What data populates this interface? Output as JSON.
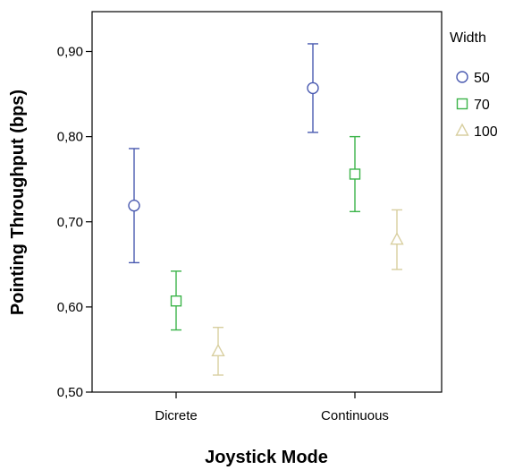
{
  "chart_data": {
    "type": "scatter",
    "title": "",
    "xlabel": "Joystick Mode",
    "ylabel": "Pointing Throughput (bps)",
    "categories": [
      "Dicrete",
      "Continuous"
    ],
    "ylim": [
      0.5,
      0.9
    ],
    "yticks": [
      "0,50",
      "0,60",
      "0,70",
      "0,80",
      "0,90"
    ],
    "yticks_values": [
      0.5,
      0.6,
      0.7,
      0.8,
      0.9
    ],
    "grid": false,
    "legend_title": "Width",
    "legend_position": "right",
    "error_bars": true,
    "series": [
      {
        "name": "50",
        "marker": "circle",
        "color": "#4a5ab0",
        "values": [
          0.719,
          0.857
        ],
        "lower": [
          0.652,
          0.805
        ],
        "upper": [
          0.786,
          0.909
        ]
      },
      {
        "name": "70",
        "marker": "square",
        "color": "#3cb44a",
        "values": [
          0.607,
          0.756
        ],
        "lower": [
          0.573,
          0.712
        ],
        "upper": [
          0.642,
          0.8
        ]
      },
      {
        "name": "100",
        "marker": "triangle",
        "color": "#d8cfa0",
        "values": [
          0.548,
          0.679
        ],
        "lower": [
          0.52,
          0.644
        ],
        "upper": [
          0.576,
          0.714
        ]
      }
    ]
  }
}
